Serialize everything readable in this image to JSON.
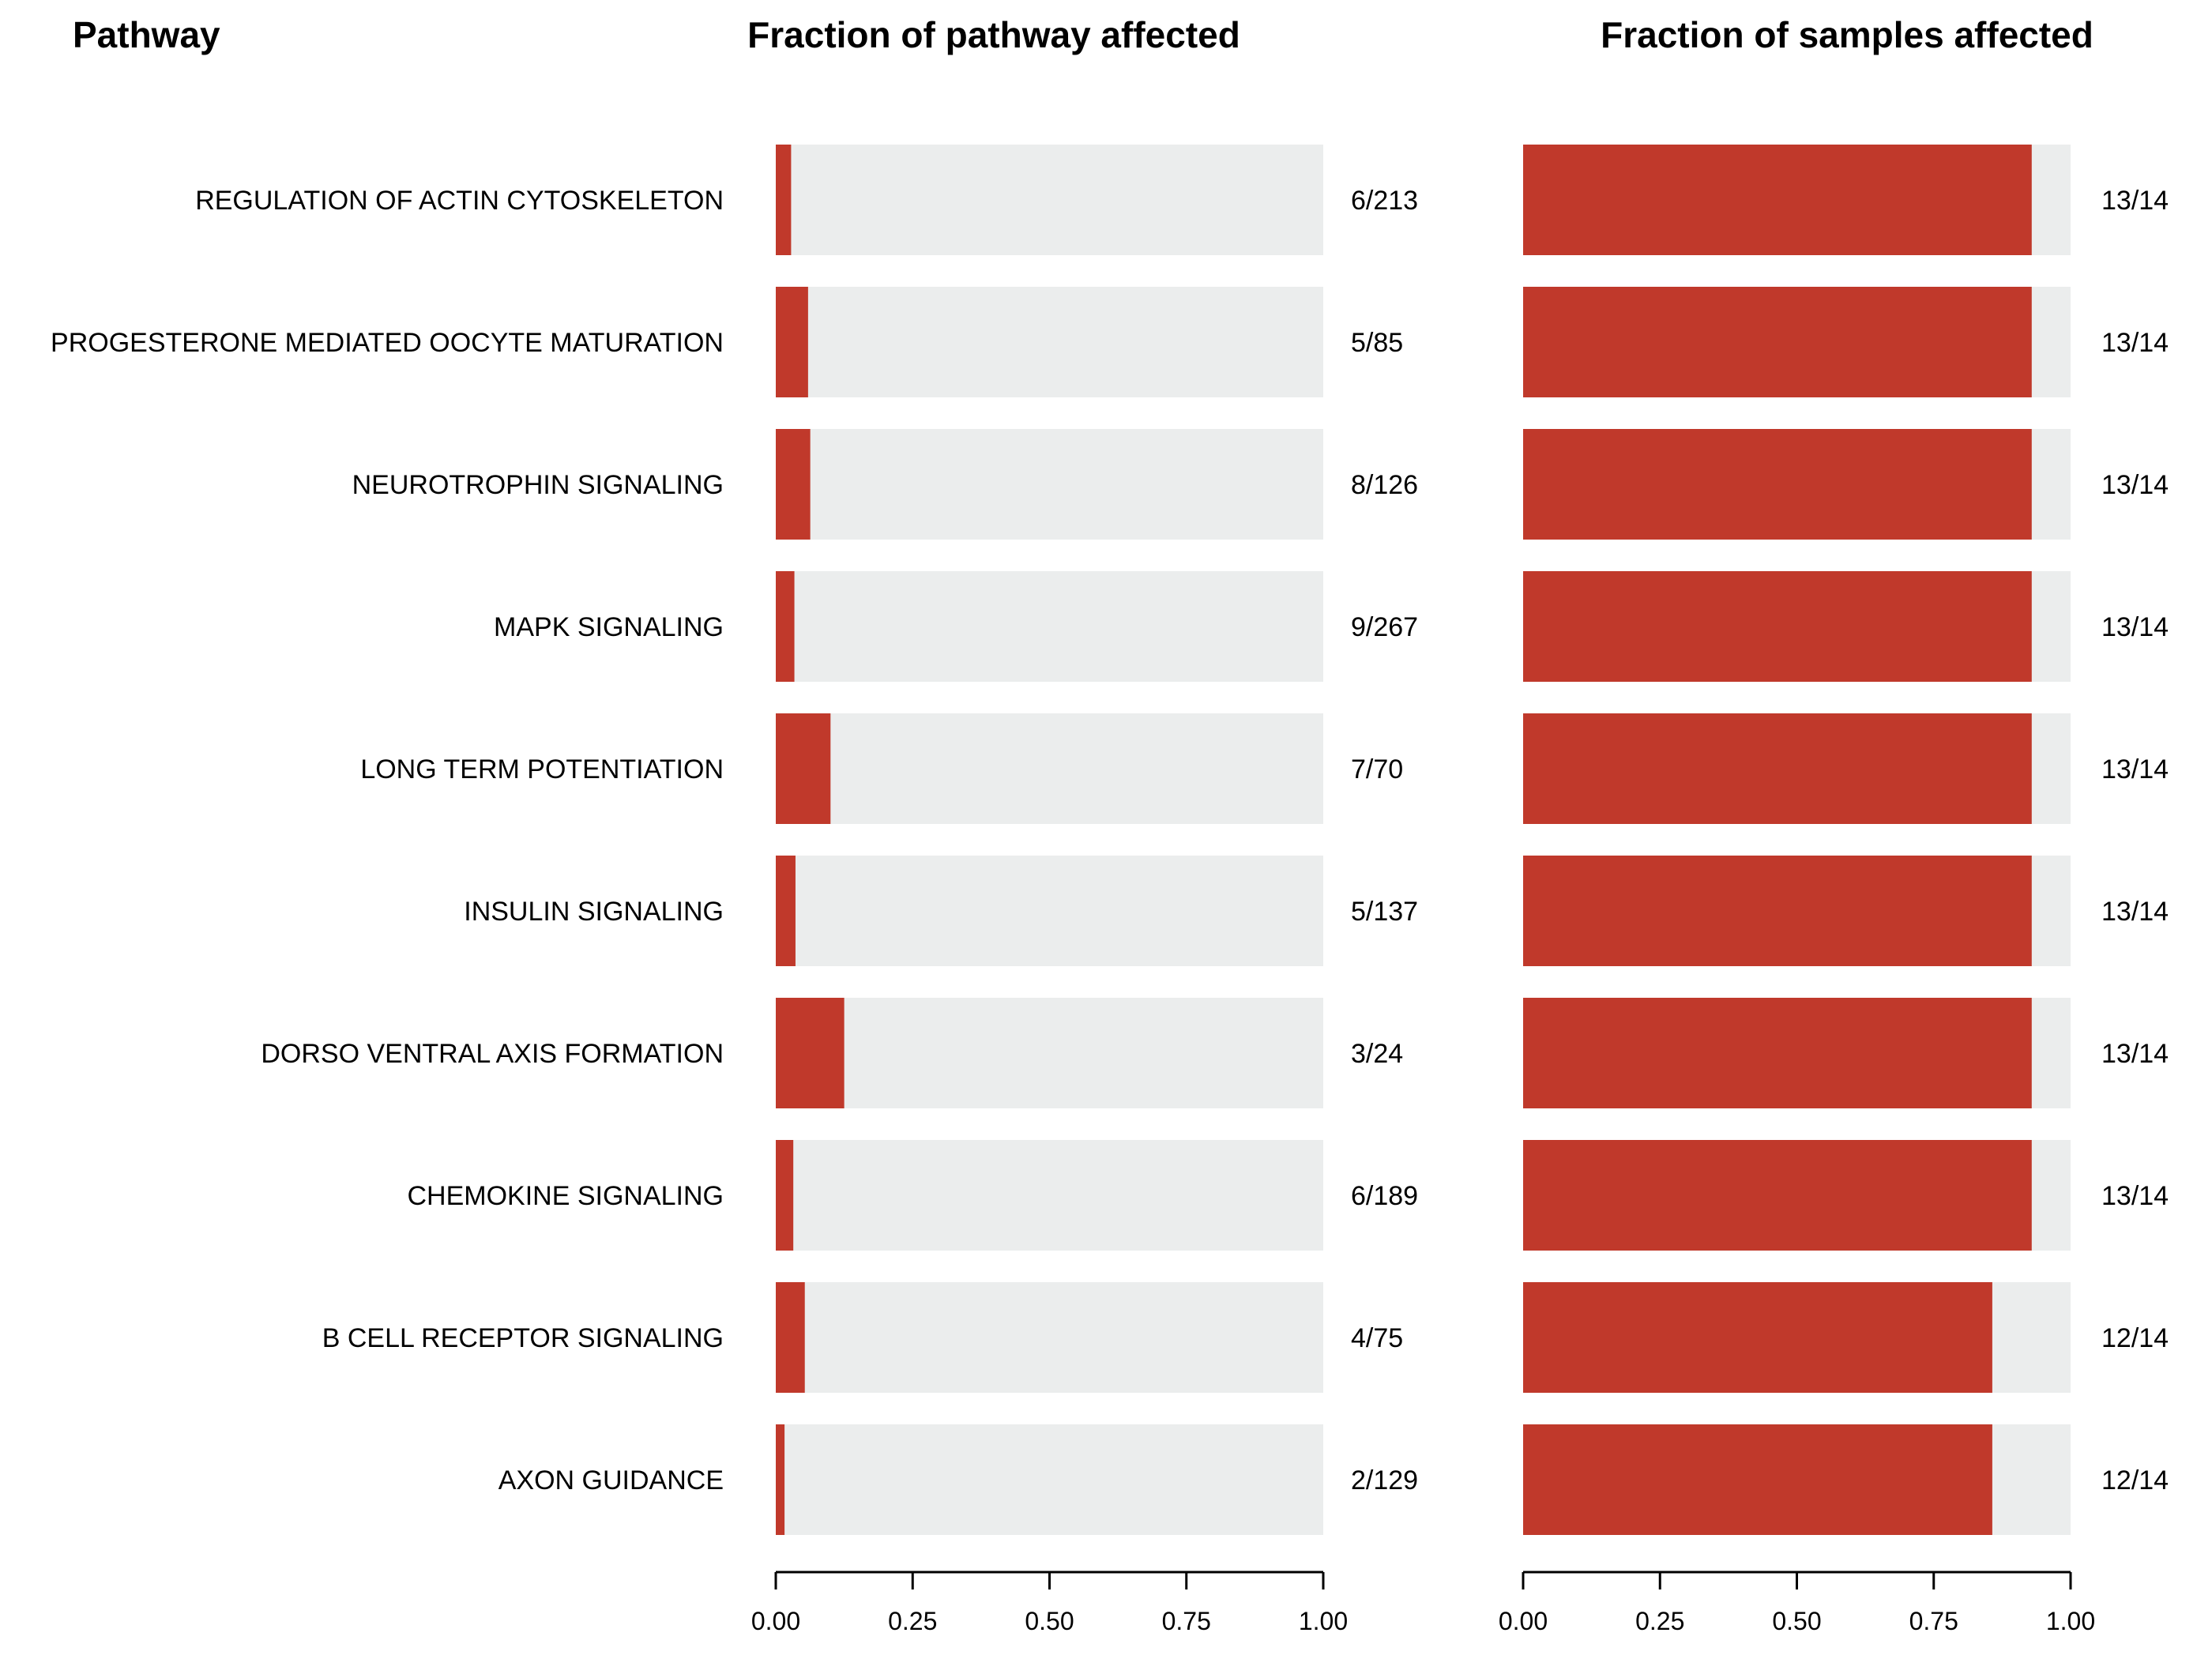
{
  "headers": {
    "pathway": "Pathway",
    "left": "Fraction of pathway affected",
    "right": "Fraction of samples affected"
  },
  "colors": {
    "filled": "#c0392b",
    "background_bar": "#ebeded"
  },
  "chart_data": {
    "type": "bar",
    "orientation": "horizontal",
    "categories": [
      "REGULATION OF ACTIN CYTOSKELETON",
      "PROGESTERONE MEDIATED OOCYTE MATURATION",
      "NEUROTROPHIN SIGNALING",
      "MAPK SIGNALING",
      "LONG TERM POTENTIATION",
      "INSULIN SIGNALING",
      "DORSO VENTRAL AXIS FORMATION",
      "CHEMOKINE SIGNALING",
      "B CELL RECEPTOR SIGNALING",
      "AXON GUIDANCE"
    ],
    "panels": [
      {
        "title": "Fraction of pathway affected",
        "xlim": [
          0,
          1
        ],
        "ticks": [
          "0.00",
          "0.25",
          "0.50",
          "0.75",
          "1.00"
        ],
        "counts": [
          "6/213",
          "5/85",
          "8/126",
          "9/267",
          "7/70",
          "5/137",
          "3/24",
          "6/189",
          "4/75",
          "2/129"
        ],
        "values": [
          0.028,
          0.059,
          0.063,
          0.034,
          0.1,
          0.036,
          0.125,
          0.032,
          0.053,
          0.016
        ]
      },
      {
        "title": "Fraction of samples affected",
        "xlim": [
          0,
          1
        ],
        "ticks": [
          "0.00",
          "0.25",
          "0.50",
          "0.75",
          "1.00"
        ],
        "counts": [
          "13/14",
          "13/14",
          "13/14",
          "13/14",
          "13/14",
          "13/14",
          "13/14",
          "13/14",
          "12/14",
          "12/14"
        ],
        "values": [
          0.929,
          0.929,
          0.929,
          0.929,
          0.929,
          0.929,
          0.929,
          0.929,
          0.857,
          0.857
        ]
      }
    ]
  }
}
